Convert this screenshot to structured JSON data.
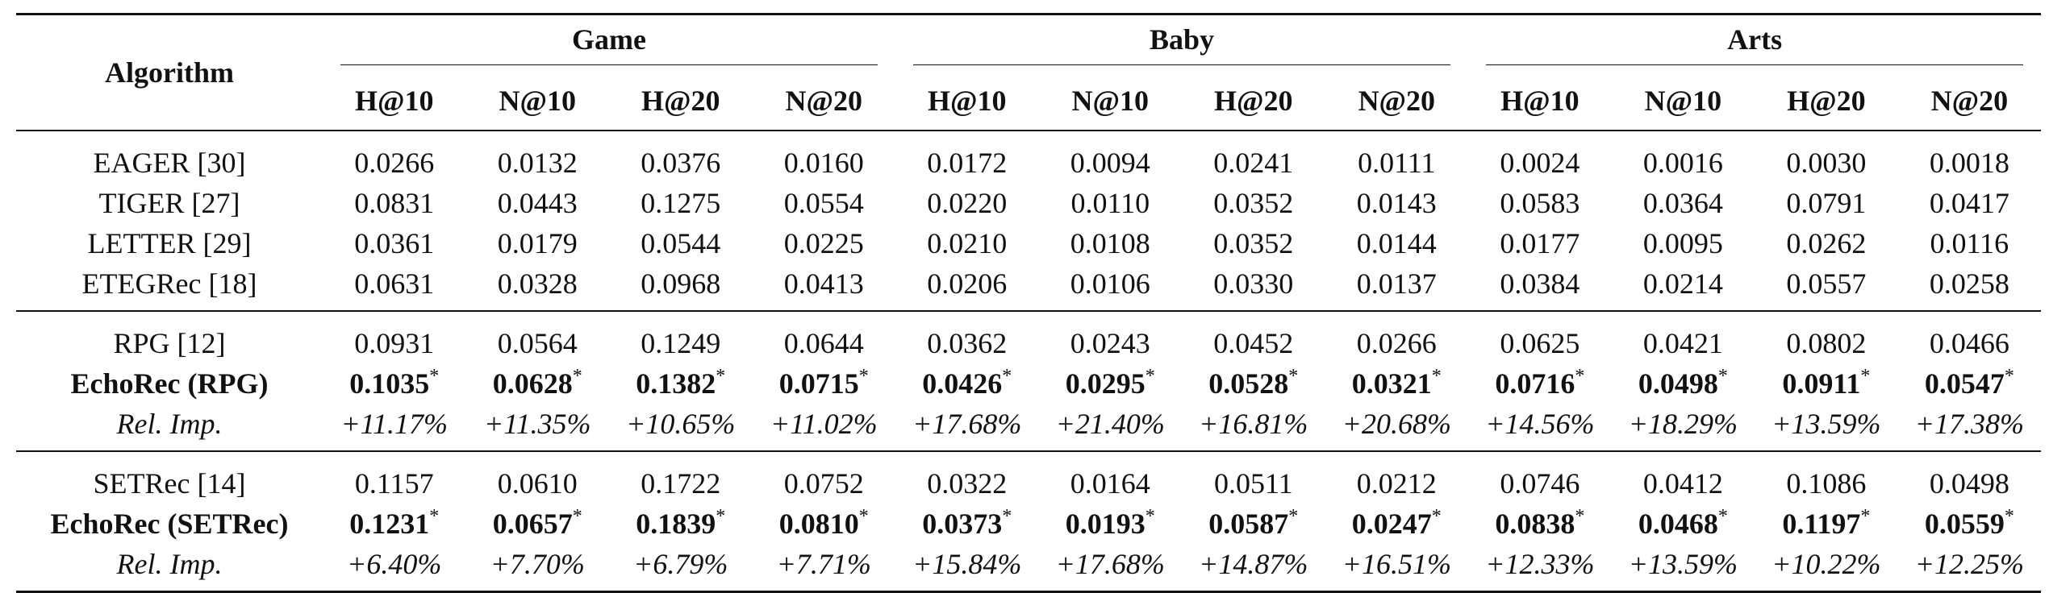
{
  "table": {
    "algorithm_header": "Algorithm",
    "groups": [
      "Game",
      "Baby",
      "Arts"
    ],
    "metrics": [
      "H@10",
      "N@10",
      "H@20",
      "N@20"
    ],
    "sections": [
      {
        "rows": [
          {
            "name": "EAGER [30]",
            "style": "normal",
            "values": [
              "0.0266",
              "0.0132",
              "0.0376",
              "0.0160",
              "0.0172",
              "0.0094",
              "0.0241",
              "0.0111",
              "0.0024",
              "0.0016",
              "0.0030",
              "0.0018"
            ]
          },
          {
            "name": "TIGER [27]",
            "style": "normal",
            "values": [
              "0.0831",
              "0.0443",
              "0.1275",
              "0.0554",
              "0.0220",
              "0.0110",
              "0.0352",
              "0.0143",
              "0.0583",
              "0.0364",
              "0.0791",
              "0.0417"
            ]
          },
          {
            "name": "LETTER [29]",
            "style": "normal",
            "values": [
              "0.0361",
              "0.0179",
              "0.0544",
              "0.0225",
              "0.0210",
              "0.0108",
              "0.0352",
              "0.0144",
              "0.0177",
              "0.0095",
              "0.0262",
              "0.0116"
            ]
          },
          {
            "name": "ETEGRec [18]",
            "style": "normal",
            "values": [
              "0.0631",
              "0.0328",
              "0.0968",
              "0.0413",
              "0.0206",
              "0.0106",
              "0.0330",
              "0.0137",
              "0.0384",
              "0.0214",
              "0.0557",
              "0.0258"
            ]
          }
        ]
      },
      {
        "rows": [
          {
            "name": "RPG [12]",
            "style": "normal",
            "values": [
              "0.0931",
              "0.0564",
              "0.1249",
              "0.0644",
              "0.0362",
              "0.0243",
              "0.0452",
              "0.0266",
              "0.0625",
              "0.0421",
              "0.0802",
              "0.0466"
            ]
          },
          {
            "name": "EchoRec (RPG)",
            "style": "bold",
            "values": [
              "0.1035",
              "0.0628",
              "0.1382",
              "0.0715",
              "0.0426",
              "0.0295",
              "0.0528",
              "0.0321",
              "0.0716",
              "0.0498",
              "0.0911",
              "0.0547"
            ]
          },
          {
            "name": "Rel. Imp.",
            "style": "italic",
            "values": [
              "+11.17%",
              "+11.35%",
              "+10.65%",
              "+11.02%",
              "+17.68%",
              "+21.40%",
              "+16.81%",
              "+20.68%",
              "+14.56%",
              "+18.29%",
              "+13.59%",
              "+17.38%"
            ]
          }
        ]
      },
      {
        "rows": [
          {
            "name": "SETRec [14]",
            "style": "normal",
            "values": [
              "0.1157",
              "0.0610",
              "0.1722",
              "0.0752",
              "0.0322",
              "0.0164",
              "0.0511",
              "0.0212",
              "0.0746",
              "0.0412",
              "0.1086",
              "0.0498"
            ]
          },
          {
            "name": "EchoRec (SETRec)",
            "style": "bold",
            "values": [
              "0.1231",
              "0.0657",
              "0.1839",
              "0.0810",
              "0.0373",
              "0.0193",
              "0.0587",
              "0.0247",
              "0.0838",
              "0.0468",
              "0.1197",
              "0.0559"
            ]
          },
          {
            "name": "Rel. Imp.",
            "style": "italic",
            "values": [
              "+6.40%",
              "+7.70%",
              "+6.79%",
              "+7.71%",
              "+15.84%",
              "+17.68%",
              "+14.87%",
              "+16.51%",
              "+12.33%",
              "+13.59%",
              "+10.22%",
              "+12.25%"
            ]
          }
        ]
      }
    ],
    "significance_marker": "*"
  }
}
